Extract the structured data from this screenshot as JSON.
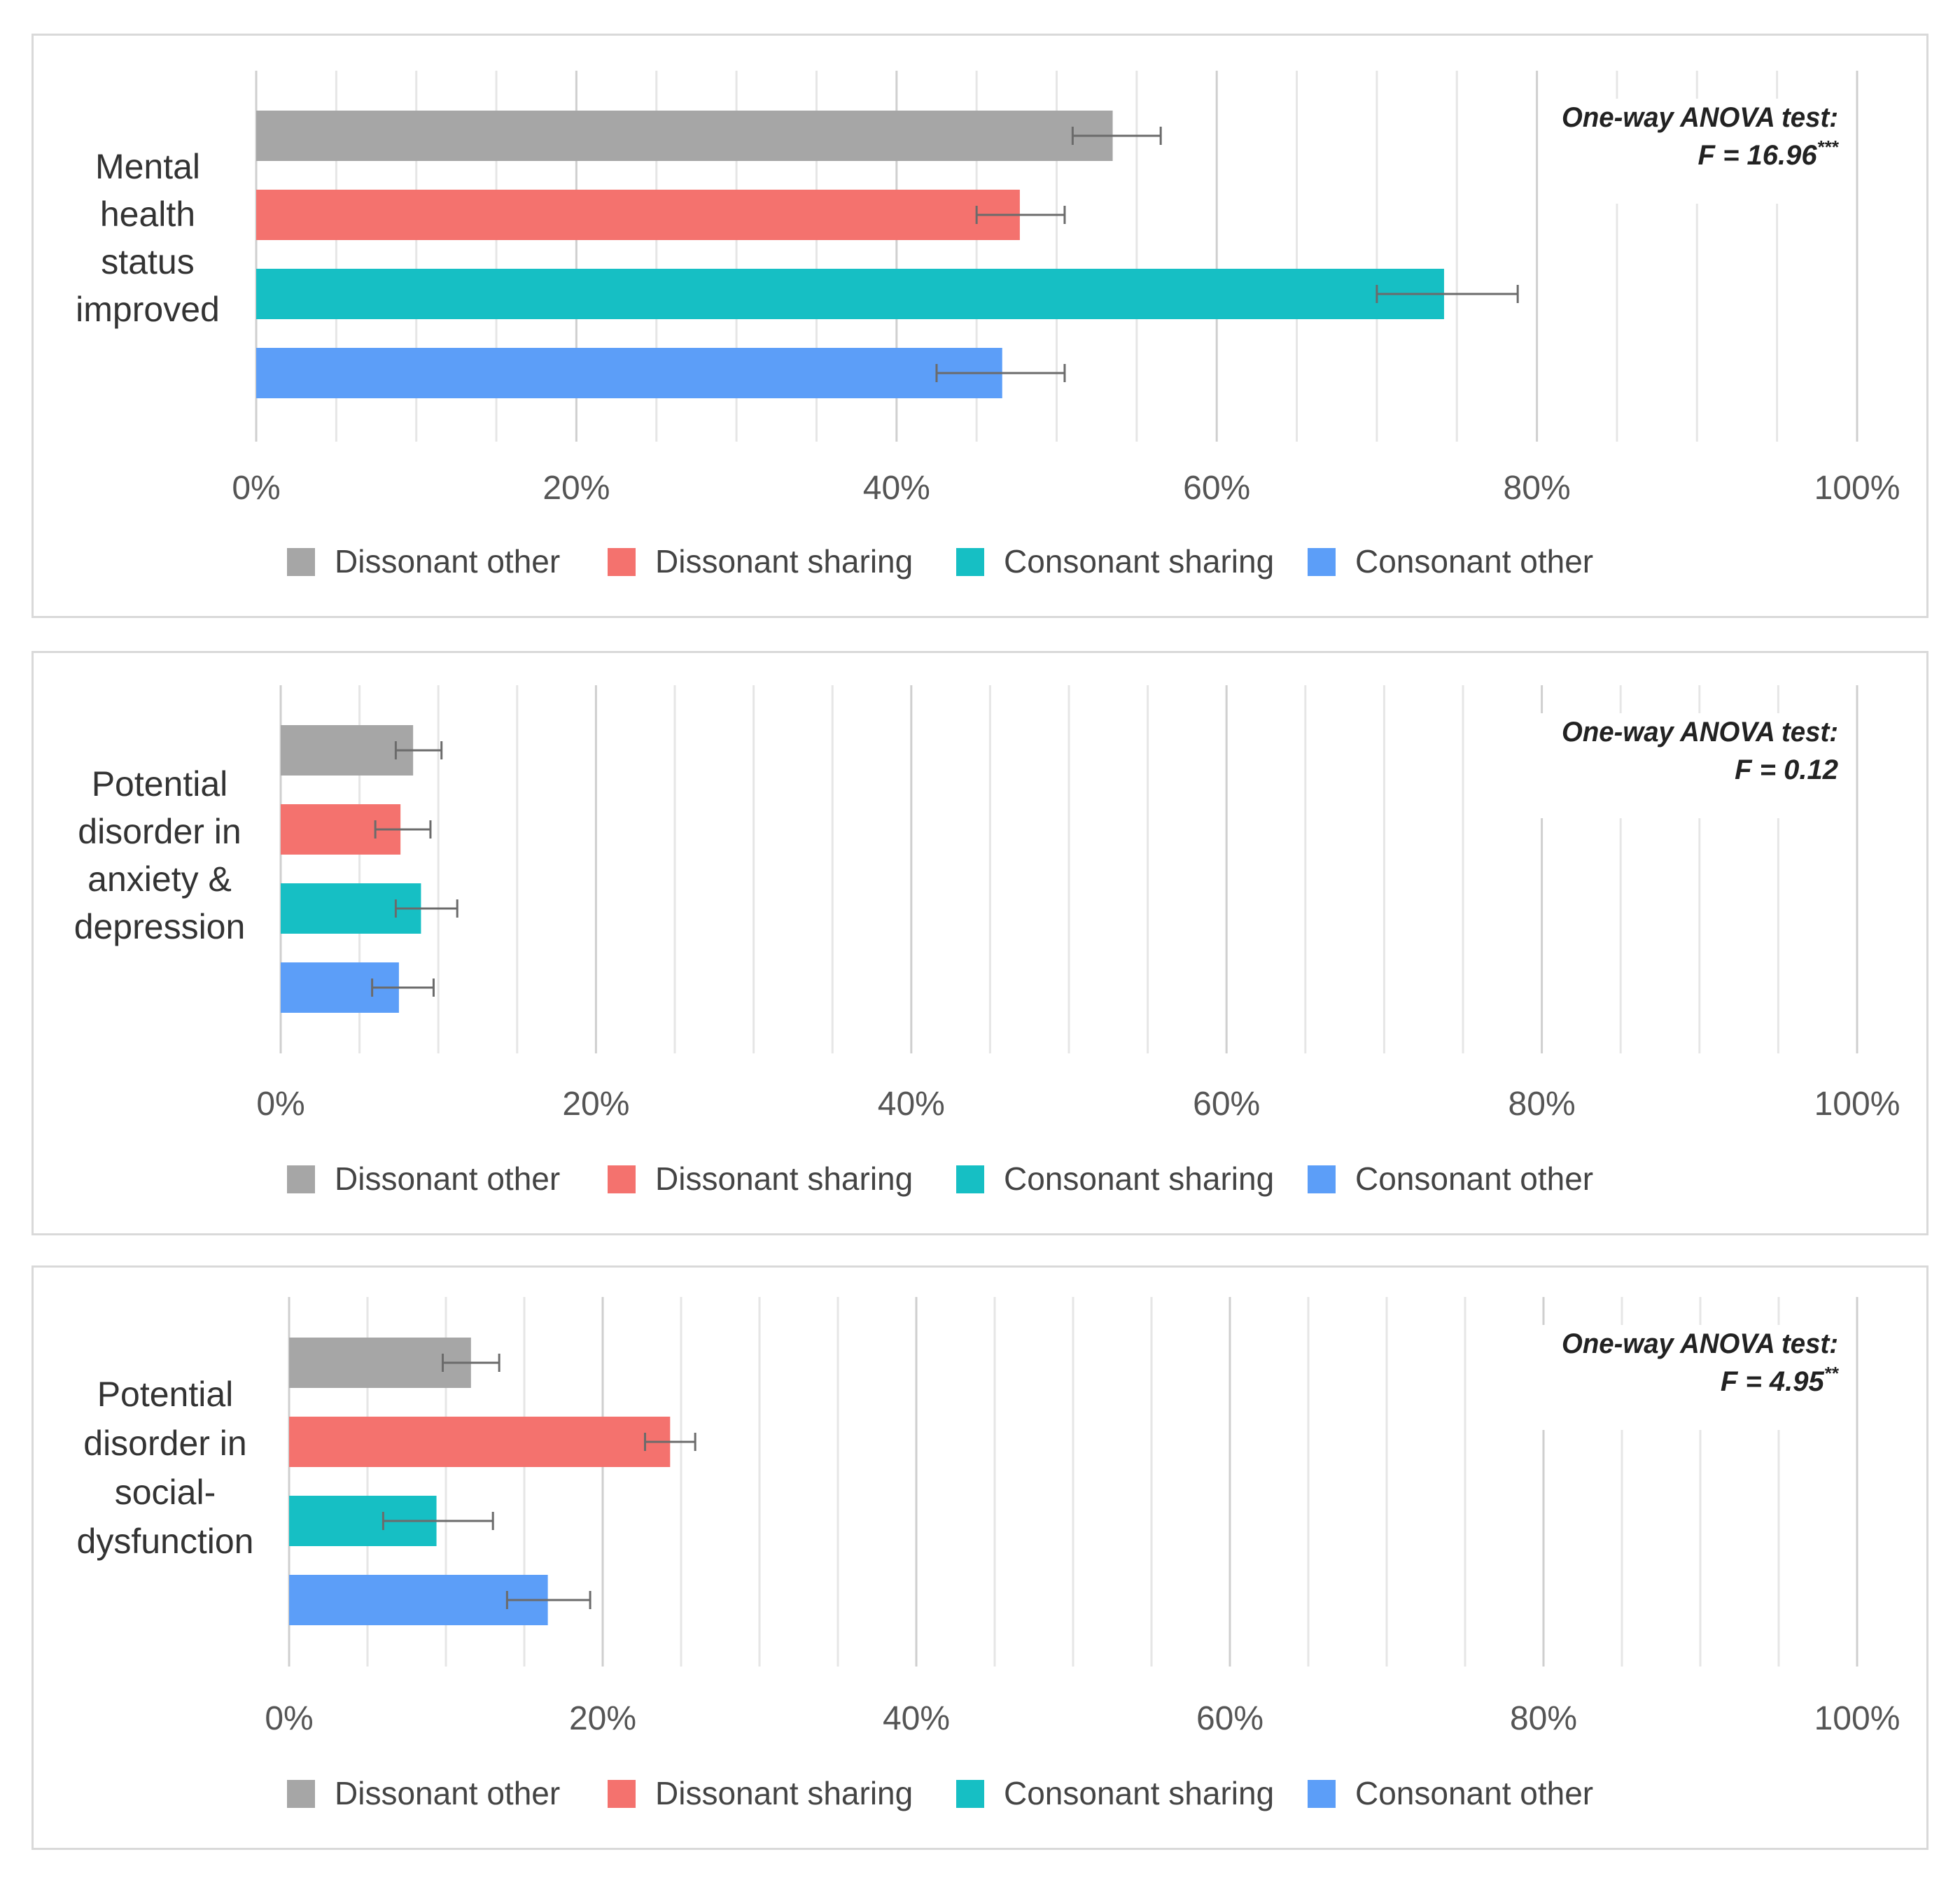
{
  "legend": [
    "Dissonant other",
    "Dissonant sharing",
    "Consonant sharing",
    "Consonant other"
  ],
  "colors": [
    "#a6a6a6",
    "#f4726e",
    "#16bfc4",
    "#5c9ef8"
  ],
  "chart_data": [
    {
      "type": "bar",
      "orientation": "horizontal",
      "category_label": [
        "Mental",
        "health",
        "status",
        "improved"
      ],
      "series": [
        {
          "name": "Dissonant other",
          "value": 53.5,
          "error_low": 51.0,
          "error_high": 56.5
        },
        {
          "name": "Dissonant sharing",
          "value": 47.7,
          "error_low": 45.0,
          "error_high": 50.5
        },
        {
          "name": "Consonant sharing",
          "value": 74.2,
          "error_low": 70.0,
          "error_high": 78.8
        },
        {
          "name": "Consonant other",
          "value": 46.6,
          "error_low": 42.5,
          "error_high": 50.5
        }
      ],
      "xlim": [
        0,
        100
      ],
      "ticks": [
        "0%",
        "20%",
        "40%",
        "60%",
        "80%",
        "100%"
      ],
      "annotation": {
        "line1": "One-way ANOVA test:",
        "line2": "F = 16.96",
        "sup": "***"
      }
    },
    {
      "type": "bar",
      "orientation": "horizontal",
      "category_label": [
        "Potential",
        "disorder in",
        "anxiety &",
        "depression"
      ],
      "series": [
        {
          "name": "Dissonant other",
          "value": 8.4,
          "error_low": 7.3,
          "error_high": 10.2
        },
        {
          "name": "Dissonant sharing",
          "value": 7.6,
          "error_low": 6.0,
          "error_high": 9.5
        },
        {
          "name": "Consonant sharing",
          "value": 8.9,
          "error_low": 7.3,
          "error_high": 11.2
        },
        {
          "name": "Consonant other",
          "value": 7.5,
          "error_low": 5.8,
          "error_high": 9.7
        }
      ],
      "xlim": [
        0,
        100
      ],
      "ticks": [
        "0%",
        "20%",
        "40%",
        "60%",
        "80%",
        "100%"
      ],
      "annotation": {
        "line1": "One-way ANOVA test:",
        "line2": "F = 0.12",
        "sup": ""
      }
    },
    {
      "type": "bar",
      "orientation": "horizontal",
      "category_label": [
        "Potential",
        "disorder in",
        "social-",
        "dysfunction"
      ],
      "series": [
        {
          "name": "Dissonant other",
          "value": 11.6,
          "error_low": 9.8,
          "error_high": 13.4
        },
        {
          "name": "Dissonant sharing",
          "value": 24.3,
          "error_low": 22.7,
          "error_high": 25.9
        },
        {
          "name": "Consonant sharing",
          "value": 9.4,
          "error_low": 6.0,
          "error_high": 13.0
        },
        {
          "name": "Consonant other",
          "value": 16.5,
          "error_low": 13.9,
          "error_high": 19.2
        }
      ],
      "xlim": [
        0,
        100
      ],
      "ticks": [
        "0%",
        "20%",
        "40%",
        "60%",
        "80%",
        "100%"
      ],
      "annotation": {
        "line1": "One-way ANOVA test:",
        "line2": "F = 4.95",
        "sup": "**"
      }
    }
  ]
}
